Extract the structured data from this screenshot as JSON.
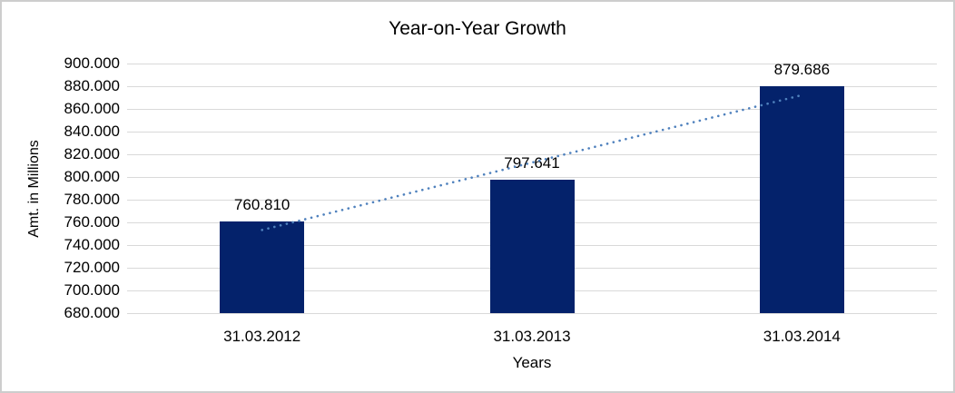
{
  "chart_data": {
    "type": "bar",
    "title": "Year-on-Year Growth",
    "xlabel": "Years",
    "ylabel": "Amt. in Millions",
    "categories": [
      "31.03.2012",
      "31.03.2013",
      "31.03.2014"
    ],
    "values": [
      760810,
      797641,
      879686
    ],
    "value_labels": [
      "760.810",
      "797.641",
      "879.686"
    ],
    "ylim": [
      680000,
      900000
    ],
    "ytick_step": 20000,
    "ytick_labels": [
      "680.000",
      "700.000",
      "720.000",
      "740.000",
      "760.000",
      "780.000",
      "800.000",
      "820.000",
      "840.000",
      "860.000",
      "880.000",
      "900.000"
    ],
    "grid": true,
    "legend": false,
    "bar_color": "#04226b",
    "gridline_color": "#d9d9d9",
    "border_color": "#cdcdcd",
    "axis_text_color": "#000000",
    "trendline": {
      "type": "linear",
      "style": "dotted",
      "color": "#4f81bd"
    }
  }
}
